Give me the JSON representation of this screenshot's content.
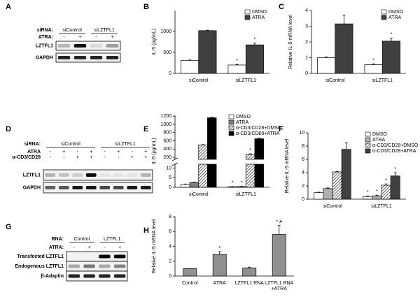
{
  "blots": [
    {
      "panel": "A",
      "groups_label": "siRNA:",
      "groups": [
        "siControl",
        "siLZTFL1"
      ],
      "lane_rows": [
        {
          "label": "ATRA:",
          "lanes": [
            "-",
            "+",
            "-",
            "+"
          ]
        }
      ],
      "bands": [
        "LZTFL1",
        "GAPDH"
      ]
    },
    {
      "panel": "D",
      "groups_label": "siRNA:",
      "groups": [
        "siControl",
        "siLZTFL1"
      ],
      "lane_rows": [
        {
          "label": "ATRA",
          "lanes": [
            "-",
            "+",
            "-",
            "+",
            "-",
            "+",
            "-",
            "+"
          ]
        },
        {
          "label": "α-CD3/CD28",
          "lanes": [
            "-",
            "-",
            "+",
            "+",
            "-",
            "-",
            "+",
            "+"
          ]
        }
      ],
      "bands": [
        "LZTFL1",
        "GAPDH"
      ]
    },
    {
      "panel": "G",
      "groups_label": "RNA:",
      "groups": [
        "Control",
        "LZTFL1"
      ],
      "lane_rows": [
        {
          "label": "ATRA:",
          "lanes": [
            "-",
            "+",
            "-",
            "+"
          ]
        }
      ],
      "bands": [
        "Transfected LZTFL1",
        "Endogenous LZTFL1",
        "β-Adaptin"
      ]
    }
  ],
  "chart_data": [
    {
      "type": "bar",
      "panel": "B",
      "y_label": "IL-5 (pg/mL)",
      "categories": [
        "siControl",
        "siLZTFL1"
      ],
      "ylim": [
        0,
        1500
      ],
      "yticks": [
        0,
        500,
        1000
      ],
      "series": [
        {
          "name": "DMSO",
          "color": "#ffffff",
          "values": [
            310,
            200
          ],
          "errors": [
            10,
            15
          ],
          "annotations": [
            null,
            "*"
          ]
        },
        {
          "name": "ATRA",
          "color": "#404040",
          "values": [
            1020,
            680
          ],
          "errors": [
            10,
            40
          ],
          "annotations": [
            null,
            "*"
          ]
        }
      ]
    },
    {
      "type": "bar",
      "panel": "C",
      "y_label": "Relative IL-5 mRNA level",
      "categories": [
        "siControl",
        "siLZTFL1"
      ],
      "ylim": [
        0,
        4
      ],
      "yticks": [
        0,
        1,
        2,
        3,
        4
      ],
      "series": [
        {
          "name": "DMSO",
          "color": "#ffffff",
          "values": [
            1.0,
            0.55
          ],
          "errors": [
            0.05,
            0.05
          ],
          "annotations": [
            null,
            "*"
          ]
        },
        {
          "name": "ATRA",
          "color": "#404040",
          "values": [
            3.15,
            2.05
          ],
          "errors": [
            0.55,
            0.2
          ],
          "annotations": [
            null,
            "*"
          ]
        }
      ]
    },
    {
      "type": "bar",
      "panel": "E",
      "y_label": "IL-5 (pg/mL)",
      "categories": [
        "siControl",
        "siLZTFL1"
      ],
      "ylim_lower": [
        0,
        12
      ],
      "yticks_lower": [
        0,
        5,
        10
      ],
      "ylim_upper": [
        150,
        1220
      ],
      "yticks_upper": [
        200,
        400,
        600,
        800,
        1000,
        1200
      ],
      "series": [
        {
          "name": "DMSO",
          "color": "#ffffff",
          "values": [
            1.5,
            0.3
          ],
          "errors": [
            0.2,
            0.1
          ],
          "annotations": [
            null,
            "*"
          ]
        },
        {
          "name": "ATRA",
          "color": "#808080",
          "values": [
            2.5,
            0.4
          ],
          "errors": [
            0.2,
            0.1
          ],
          "annotations": [
            null,
            "*"
          ]
        },
        {
          "name": "α-CD3/CD28+DMSO",
          "color": "#ffffff",
          "pattern": "diagonal",
          "values": [
            500,
            270
          ],
          "errors": [
            10,
            15
          ],
          "annotations": [
            null,
            "*"
          ]
        },
        {
          "name": "α-CD3/CD28+ATRA",
          "color": "#000000",
          "values": [
            1160,
            650
          ],
          "errors": [
            15,
            20
          ],
          "annotations": [
            null,
            "*"
          ]
        }
      ]
    },
    {
      "type": "bar",
      "panel": "F",
      "y_label": "Relative IL-5 mRNA level",
      "categories": [
        "siControl",
        "siLZTFL1"
      ],
      "ylim": [
        0,
        10
      ],
      "yticks": [
        0,
        2,
        4,
        6,
        8,
        10
      ],
      "series": [
        {
          "name": "DMSO",
          "color": "#ffffff",
          "values": [
            1.0,
            0.4
          ],
          "errors": [
            0.05,
            0.1
          ],
          "annotations": [
            null,
            "*"
          ]
        },
        {
          "name": "ATRA",
          "color": "#b0b0b0",
          "values": [
            1.6,
            0.5
          ],
          "errors": [
            0.1,
            0.1
          ],
          "annotations": [
            null,
            "*"
          ]
        },
        {
          "name": "α-CD3/CD28+DMSO",
          "color": "#ffffff",
          "pattern": "diagonal",
          "values": [
            4.1,
            2.1
          ],
          "errors": [
            0.1,
            0.2
          ],
          "annotations": [
            null,
            "*"
          ]
        },
        {
          "name": "α-CD3/CD28+ATRA",
          "color": "#404040",
          "values": [
            7.5,
            3.5
          ],
          "errors": [
            1.0,
            0.5
          ],
          "annotations": [
            null,
            "*"
          ]
        }
      ]
    },
    {
      "type": "bar",
      "panel": "H",
      "y_label": "Relative IL-5 mRNA level",
      "categories": [
        [
          "Control"
        ],
        [
          "ATRA"
        ],
        [
          "LZTFL1 RNA"
        ],
        [
          "LZTFL1 RNA",
          "+ATRA"
        ]
      ],
      "ylim": [
        0,
        8
      ],
      "yticks": [
        0,
        2,
        4,
        6,
        8
      ],
      "series": [
        {
          "color": "#909090",
          "values": [
            1.0,
            2.9,
            1.1,
            5.6
          ],
          "errors": [
            0,
            0.4,
            0.1,
            1.2
          ],
          "annotations": [
            null,
            "*",
            null,
            "* #"
          ]
        }
      ]
    }
  ]
}
